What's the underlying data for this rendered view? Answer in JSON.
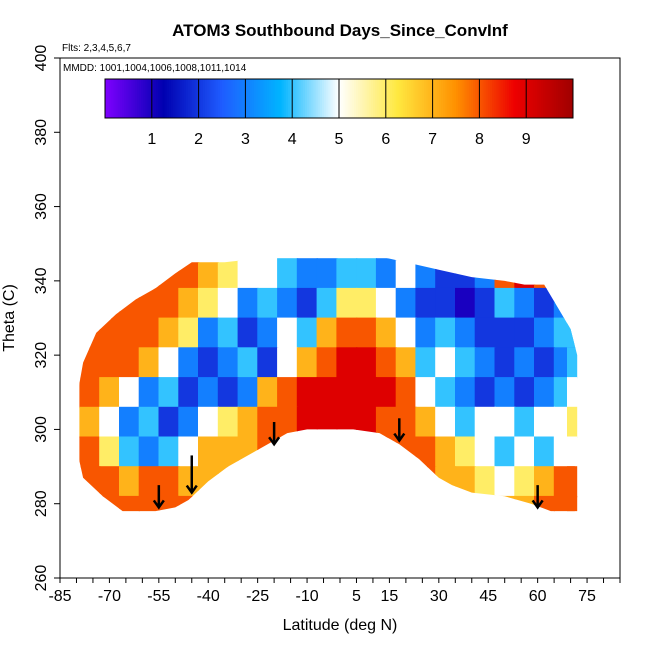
{
  "chart_data": {
    "type": "heatmap",
    "title": "ATOM3 Southbound Days_Since_ConvInf",
    "flights_note": "Flts: 2,3,4,5,6,7",
    "mmdd_note": "MMDD: 1001,1004,1006,1008,1011,1014",
    "xlabel": "Latitude (deg N)",
    "ylabel": "Theta (C)",
    "xlim": [
      -85,
      85
    ],
    "ylim": [
      260,
      400
    ],
    "x_tick_labels": [
      "-85",
      "-70",
      "-55",
      "-40",
      "-25",
      "-10",
      "5",
      "15",
      "30",
      "45",
      "60",
      "75"
    ],
    "y_tick_labels": [
      "260",
      "280",
      "300",
      "320",
      "340",
      "360",
      "380",
      "400"
    ],
    "colorbar": {
      "range": [
        0,
        10
      ],
      "tick_labels": [
        "1",
        "2",
        "3",
        "4",
        "5",
        "6",
        "7",
        "8",
        "9"
      ],
      "colors": [
        "#7f00ff",
        "#0000b0",
        "#1f5cff",
        "#00b4ff",
        "#ffffff",
        "#ffe840",
        "#ff9000",
        "#ee0000",
        "#a00000"
      ]
    },
    "curtain": {
      "lat_columns": [
        -76,
        -70,
        -64,
        -58,
        -52,
        -46,
        -40,
        -34,
        -28,
        -22,
        -16,
        -10,
        -4,
        2,
        8,
        14,
        20,
        26,
        32,
        38,
        44,
        50,
        56,
        62,
        68,
        72
      ],
      "theta_rows": [
        342,
        334,
        326,
        318,
        310,
        302,
        294,
        286,
        278
      ],
      "days": [
        [
          null,
          null,
          null,
          8,
          8,
          8,
          7,
          6,
          5,
          5,
          4,
          3,
          3,
          4,
          4,
          3,
          5,
          3,
          2,
          2,
          3,
          8,
          9,
          8,
          null,
          null
        ],
        [
          null,
          null,
          8,
          8,
          8,
          7,
          6,
          5,
          3,
          4,
          3,
          2,
          4,
          6,
          6,
          5,
          3,
          2,
          2,
          1,
          2,
          4,
          3,
          2,
          3,
          null
        ],
        [
          null,
          8,
          8,
          8,
          7,
          6,
          3,
          4,
          2,
          3,
          5,
          4,
          7,
          8,
          8,
          7,
          5,
          3,
          4,
          3,
          2,
          2,
          2,
          3,
          4,
          4
        ],
        [
          8,
          8,
          8,
          7,
          5,
          3,
          2,
          3,
          4,
          2,
          5,
          7,
          8,
          9,
          9,
          8,
          7,
          4,
          5,
          4,
          3,
          2,
          3,
          2,
          3,
          4
        ],
        [
          8,
          7,
          5,
          3,
          4,
          2,
          3,
          2,
          3,
          7,
          8,
          9,
          9,
          9,
          9,
          9,
          8,
          5,
          4,
          3,
          2,
          3,
          2,
          3,
          4,
          5
        ],
        [
          7,
          5,
          3,
          4,
          2,
          3,
          5,
          6,
          7,
          8,
          null,
          null,
          null,
          9,
          9,
          8,
          8,
          7,
          5,
          4,
          5,
          5,
          4,
          5,
          5,
          6
        ],
        [
          8,
          6,
          4,
          3,
          4,
          5,
          7,
          7,
          null,
          null,
          null,
          null,
          null,
          null,
          null,
          null,
          null,
          8,
          7,
          6,
          5,
          4,
          5,
          4,
          5,
          5
        ],
        [
          null,
          8,
          7,
          8,
          8,
          7,
          null,
          null,
          null,
          null,
          null,
          null,
          null,
          null,
          null,
          null,
          null,
          null,
          null,
          7,
          6,
          5,
          6,
          7,
          8,
          8
        ],
        [
          null,
          null,
          8,
          8,
          8,
          null,
          null,
          null,
          null,
          null,
          null,
          null,
          null,
          null,
          null,
          null,
          null,
          null,
          null,
          null,
          null,
          7,
          7,
          8,
          8,
          null
        ]
      ]
    },
    "outline_top": [
      [
        -80,
        308
      ],
      [
        -78,
        318
      ],
      [
        -74,
        326
      ],
      [
        -68,
        331
      ],
      [
        -62,
        335
      ],
      [
        -56,
        338
      ],
      [
        -50,
        342
      ],
      [
        -45,
        345
      ],
      [
        -35,
        345
      ],
      [
        -25,
        346
      ],
      [
        -20,
        349
      ],
      [
        -10,
        348
      ],
      [
        0,
        348
      ],
      [
        10,
        347
      ],
      [
        20,
        345
      ],
      [
        30,
        343
      ],
      [
        40,
        341
      ],
      [
        50,
        340
      ],
      [
        56,
        339
      ],
      [
        62,
        339
      ],
      [
        66,
        333
      ],
      [
        70,
        327
      ],
      [
        72,
        320
      ],
      [
        72,
        305
      ]
    ],
    "outline_bottom": [
      [
        72,
        302
      ],
      [
        72,
        278
      ],
      [
        64,
        278
      ],
      [
        58,
        280
      ],
      [
        50,
        282
      ],
      [
        40,
        283
      ],
      [
        34,
        285
      ],
      [
        30,
        287
      ],
      [
        24,
        292
      ],
      [
        18,
        296
      ],
      [
        12,
        299
      ],
      [
        4,
        300
      ],
      [
        -4,
        300
      ],
      [
        -10,
        300
      ],
      [
        -16,
        299
      ],
      [
        -20,
        297
      ],
      [
        -26,
        294
      ],
      [
        -34,
        290
      ],
      [
        -40,
        286
      ],
      [
        -46,
        281
      ],
      [
        -50,
        279
      ],
      [
        -56,
        278
      ],
      [
        -62,
        278
      ],
      [
        -66,
        278
      ],
      [
        -72,
        282
      ],
      [
        -78,
        287
      ],
      [
        -80,
        295
      ]
    ],
    "arrows": [
      {
        "lat": -55,
        "theta_top": 285,
        "theta_bottom": 279
      },
      {
        "lat": -45,
        "theta_top": 293,
        "theta_bottom": 283
      },
      {
        "lat": -20,
        "theta_top": 302,
        "theta_bottom": 296
      },
      {
        "lat": 18,
        "theta_top": 303,
        "theta_bottom": 297
      },
      {
        "lat": 60,
        "theta_top": 285,
        "theta_bottom": 279
      }
    ]
  }
}
